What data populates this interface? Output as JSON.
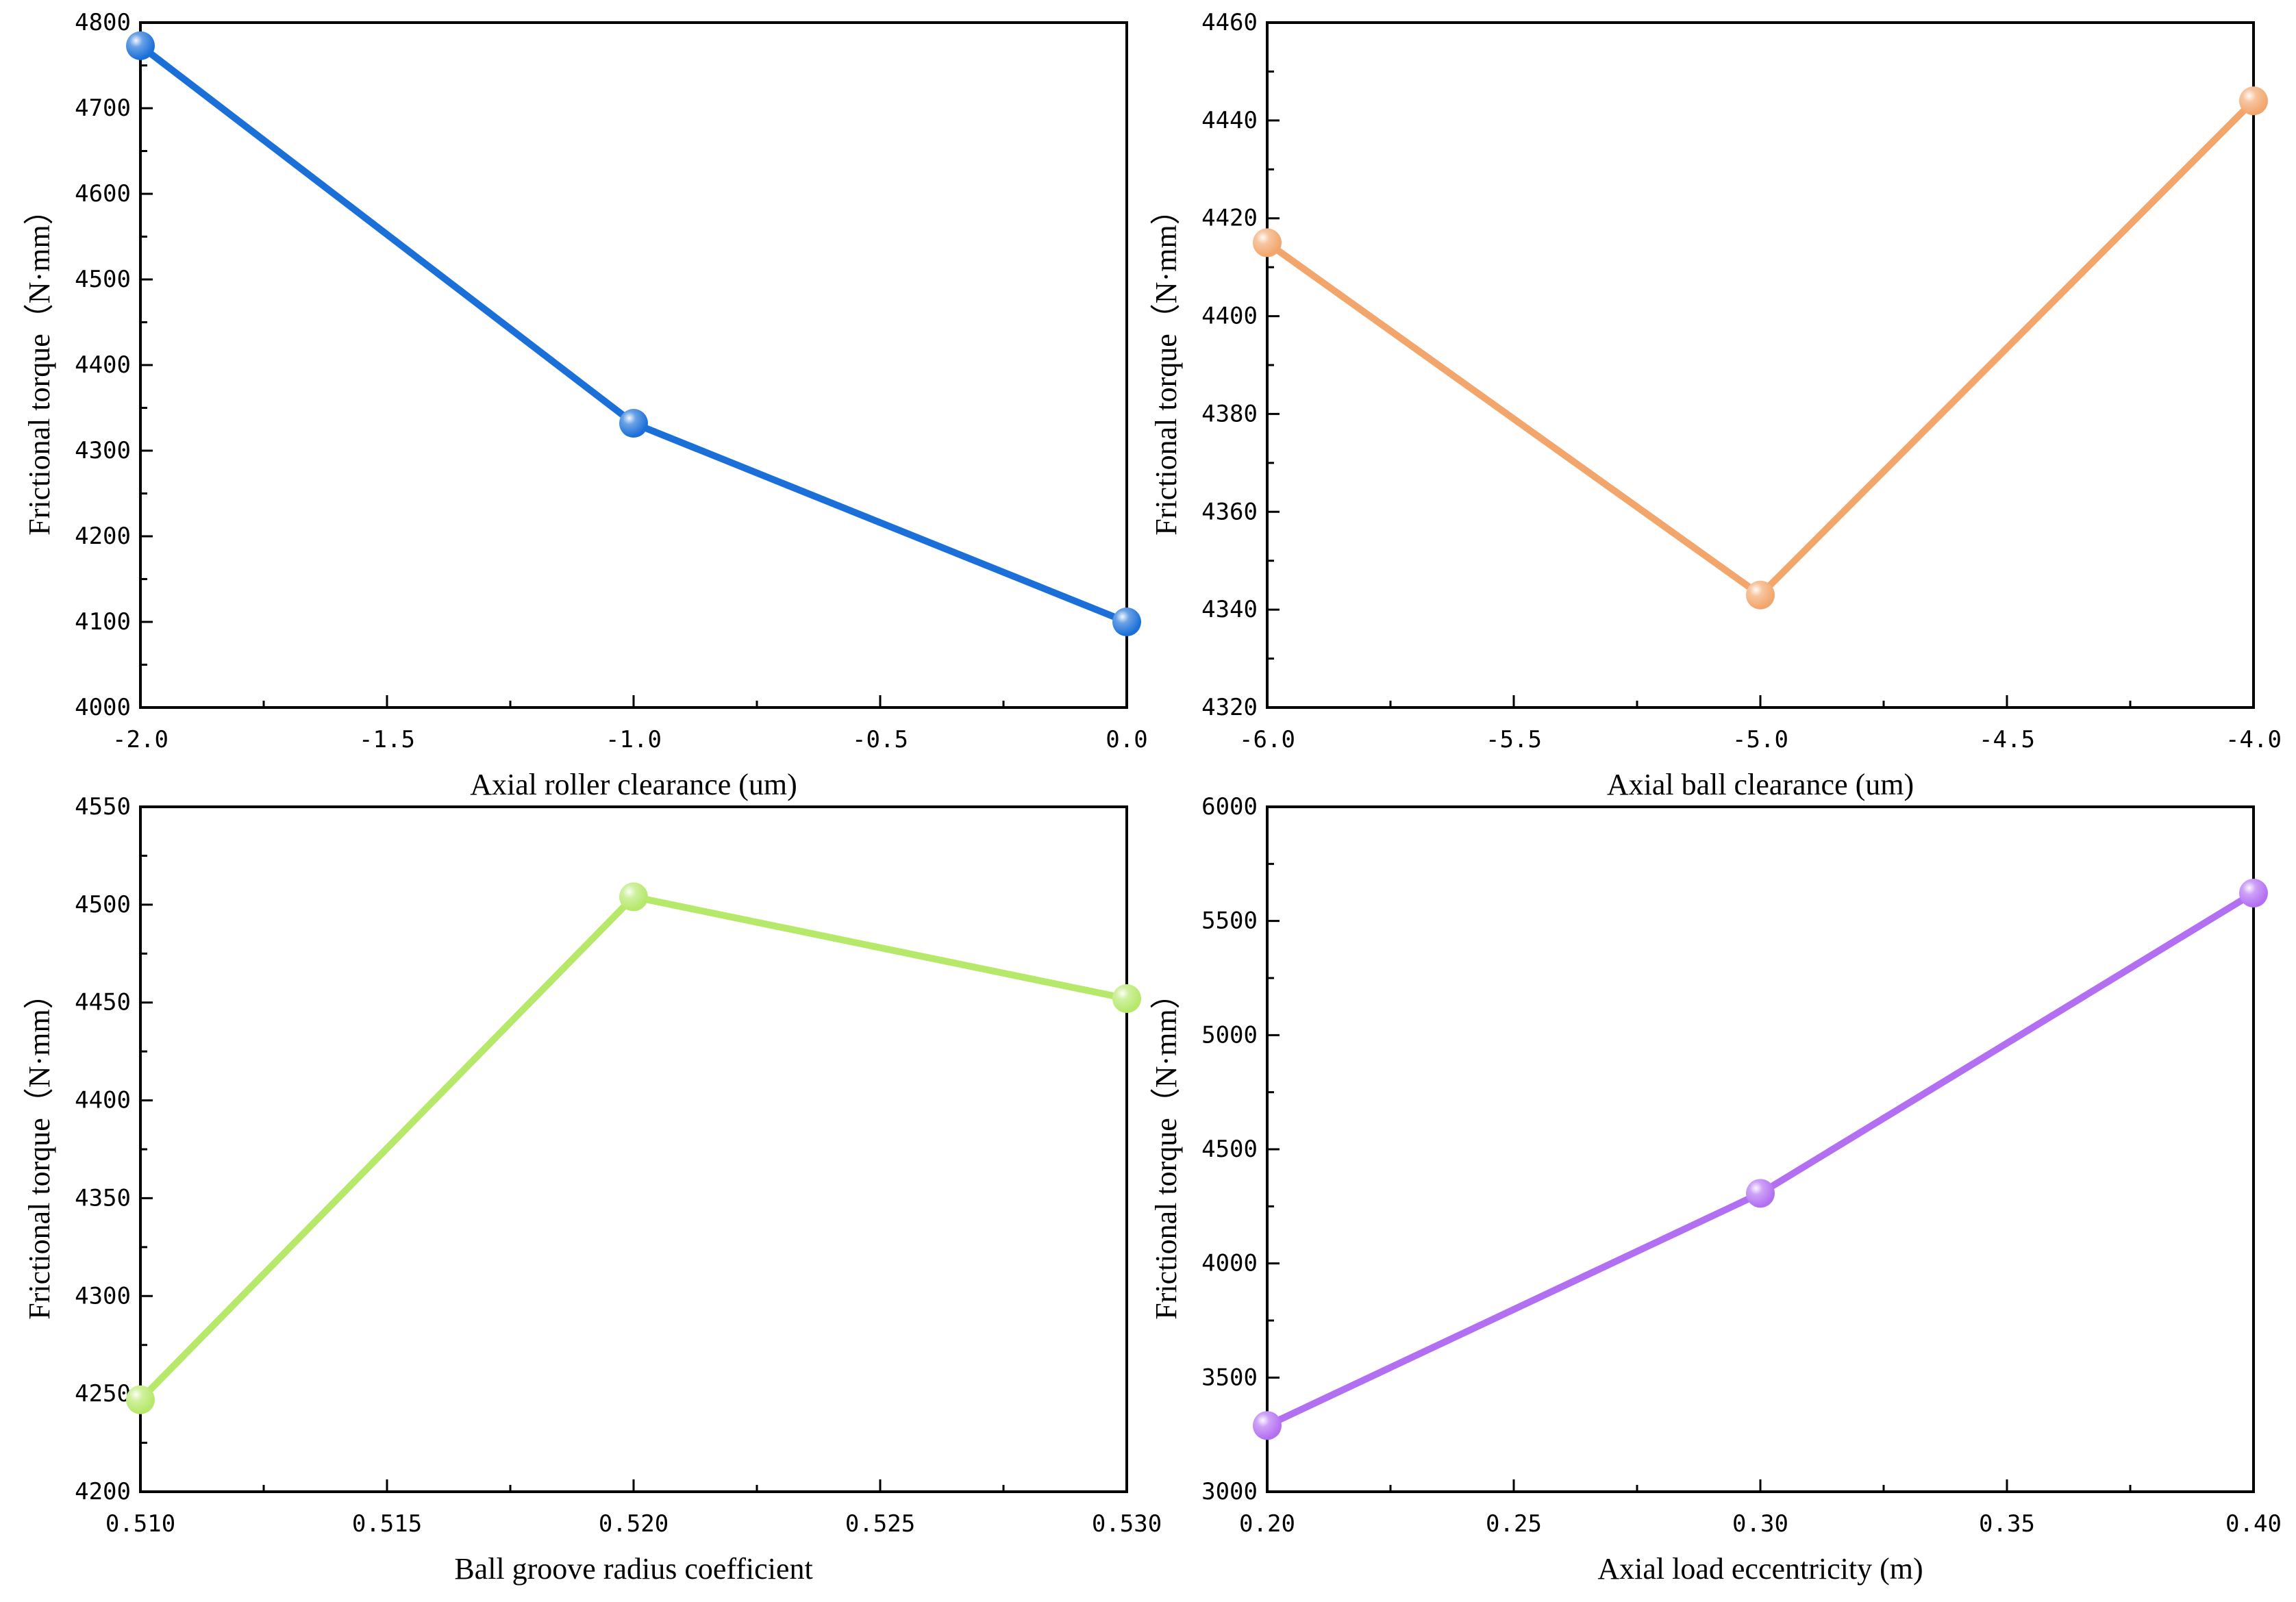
{
  "chart_data": [
    {
      "type": "line",
      "title": "",
      "xlabel": "Axial roller clearance (um)",
      "ylabel": "Frictional torque（N·mm）",
      "x": [
        -2.0,
        -1.0,
        0.0
      ],
      "values": [
        4773,
        4332,
        4100
      ],
      "xlim": [
        -2.0,
        0.0
      ],
      "ylim": [
        4000,
        4800
      ],
      "xticks": [
        "-2.0",
        "-1.5",
        "-1.0",
        "-0.5",
        "0.0"
      ],
      "yticks": [
        "4000",
        "4100",
        "4200",
        "4300",
        "4400",
        "4500",
        "4600",
        "4700",
        "4800"
      ],
      "color": "#1a6fd8",
      "marker_color": "#1a6fd8",
      "grid": false
    },
    {
      "type": "line",
      "title": "",
      "xlabel": "Axial ball clearance (um)",
      "ylabel": "Frictional torque（N·mm）",
      "x": [
        -6.0,
        -5.0,
        -4.0
      ],
      "values": [
        4415,
        4343,
        4444
      ],
      "xlim": [
        -6.0,
        -4.0
      ],
      "ylim": [
        4320,
        4460
      ],
      "xticks": [
        "-6.0",
        "-5.5",
        "-5.0",
        "-4.5",
        "-4.0"
      ],
      "yticks": [
        "4320",
        "4340",
        "4360",
        "4380",
        "4400",
        "4420",
        "4440",
        "4460"
      ],
      "color": "#f2a66b",
      "marker_color": "#f2a66b",
      "grid": false
    },
    {
      "type": "line",
      "title": "",
      "xlabel": "Ball groove radius coefficient",
      "ylabel": "Frictional torque（N·mm）",
      "x": [
        0.51,
        0.52,
        0.53
      ],
      "values": [
        4247,
        4504,
        4452
      ],
      "xlim": [
        0.51,
        0.53
      ],
      "ylim": [
        4200,
        4550
      ],
      "xticks": [
        "0.510",
        "0.515",
        "0.520",
        "0.525",
        "0.530"
      ],
      "yticks": [
        "4200",
        "4250",
        "4300",
        "4350",
        "4400",
        "4450",
        "4500",
        "4550"
      ],
      "color": "#b6e86a",
      "marker_color": "#b6e86a",
      "grid": false
    },
    {
      "type": "line",
      "title": "",
      "xlabel": "Axial load eccentricity (m)",
      "ylabel": "Frictional torque（N·mm）",
      "x": [
        0.2,
        0.3,
        0.4
      ],
      "values": [
        3290,
        4307,
        5622
      ],
      "xlim": [
        0.2,
        0.4
      ],
      "ylim": [
        3000,
        6000
      ],
      "xticks": [
        "0.20",
        "0.25",
        "0.30",
        "0.35",
        "0.40"
      ],
      "yticks": [
        "3000",
        "3500",
        "4000",
        "4500",
        "5000",
        "5500",
        "6000"
      ],
      "color": "#b36ff2",
      "marker_color": "#b36ff2",
      "grid": false
    }
  ]
}
